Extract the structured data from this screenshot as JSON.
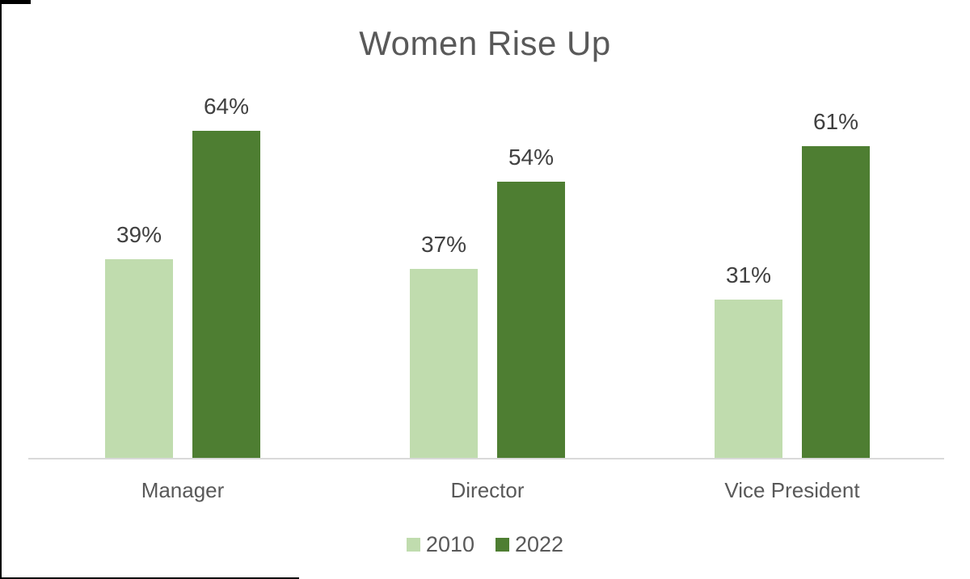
{
  "chart_data": {
    "type": "bar",
    "title": "Women Rise Up",
    "categories": [
      "Manager",
      "Director",
      "Vice President"
    ],
    "series": [
      {
        "name": "2010",
        "color": "#c0dcae",
        "values": [
          39,
          37,
          31
        ],
        "labels": [
          "39%",
          "37%",
          "31%"
        ]
      },
      {
        "name": "2022",
        "color": "#4e7e32",
        "values": [
          64,
          54,
          61
        ],
        "labels": [
          "64%",
          "54%",
          "61%"
        ]
      }
    ],
    "ylim": [
      0,
      70
    ],
    "value_format": "percent",
    "data_labels": "outside-end",
    "legend_position": "bottom",
    "gridlines": false,
    "y_axis_visible": false,
    "x_axis_line": true
  },
  "colors": {
    "series_2010": "#c0dcae",
    "series_2022": "#4e7e32",
    "title_text": "#595959",
    "data_label_text": "#404040",
    "category_text": "#595959",
    "legend_text": "#595959",
    "axis_line": "#d9d9d9",
    "background": "#ffffff",
    "border_artifact": "#000000"
  }
}
